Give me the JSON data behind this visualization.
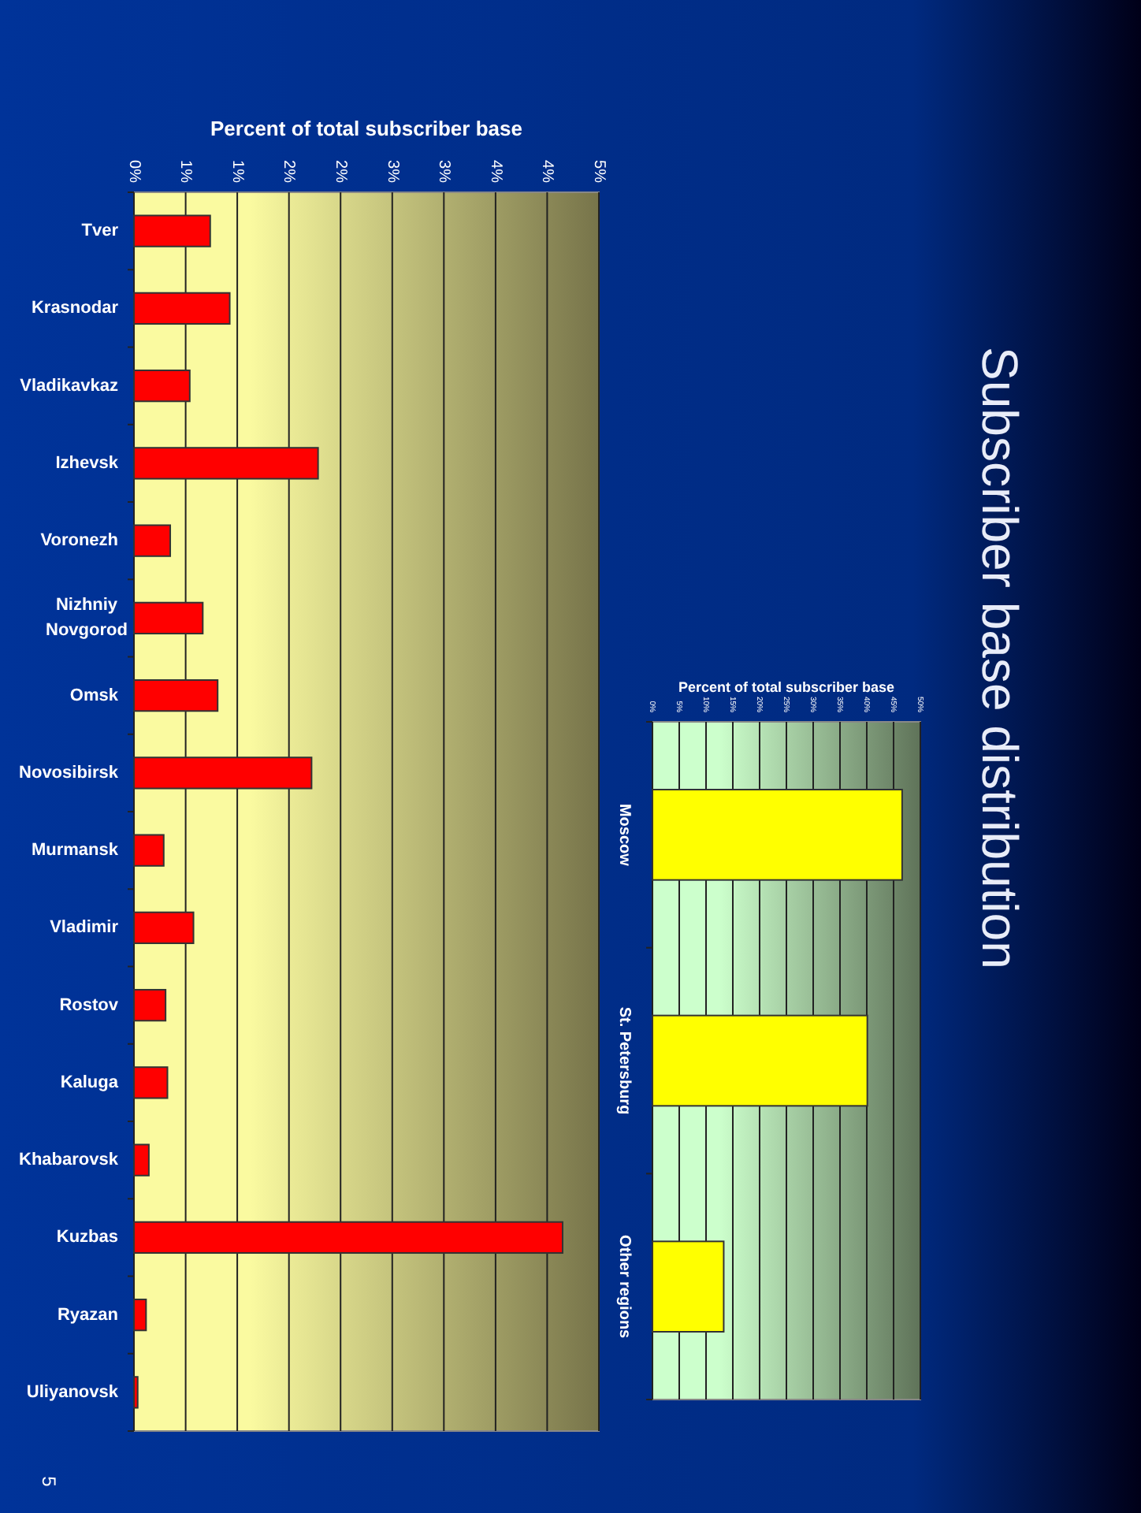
{
  "chart_data": [
    {
      "type": "bar",
      "orientation": "horizontal",
      "title": "Percent of total subscriber base",
      "annotations": [
        "Subscriber base distribution",
        "5"
      ],
      "categories": [
        "Tver",
        "Krasnodar",
        "Vladikavkaz",
        "Izhevsk",
        "Voronezh",
        "Nizhniy Novgorod",
        "Omsk",
        "Novosibirsk",
        "Murmansk",
        "Vladimir",
        "Rostov",
        "Kaluga",
        "Khabarovsk",
        "Kuzbas",
        "Ryazan",
        "Uliyanovsk"
      ],
      "values": [
        0.82,
        1.03,
        0.6,
        1.98,
        0.39,
        0.74,
        0.9,
        1.91,
        0.32,
        0.64,
        0.34,
        0.36,
        0.16,
        4.61,
        0.13,
        0.04
      ],
      "color": "#ff0000",
      "xlim": [
        0,
        5
      ],
      "xticks": [
        {
          "value": 0,
          "label": "0%"
        },
        {
          "value": 0.556,
          "label": "1%"
        },
        {
          "value": 1.111,
          "label": "1%"
        },
        {
          "value": 1.667,
          "label": "2%"
        },
        {
          "value": 2.222,
          "label": "2%"
        },
        {
          "value": 2.778,
          "label": "3%"
        },
        {
          "value": 3.333,
          "label": "3%"
        },
        {
          "value": 3.889,
          "label": "4%"
        },
        {
          "value": 4.444,
          "label": "4%"
        },
        {
          "value": 5,
          "label": "5%"
        }
      ],
      "grid": "x"
    },
    {
      "type": "bar",
      "orientation": "horizontal",
      "title": "Percent of total subscriber base",
      "categories": [
        "Moscow",
        "St. Petersburg",
        "Other regions"
      ],
      "values": [
        46.6,
        40.1,
        13.3
      ],
      "color": "#ffff00",
      "xlim": [
        0,
        50
      ],
      "xticks": [
        {
          "value": 0,
          "label": "0%"
        },
        {
          "value": 5,
          "label": "5%"
        },
        {
          "value": 10,
          "label": "10%"
        },
        {
          "value": 15,
          "label": "15%"
        },
        {
          "value": 20,
          "label": "20%"
        },
        {
          "value": 25,
          "label": "25%"
        },
        {
          "value": 30,
          "label": "30%"
        },
        {
          "value": 35,
          "label": "35%"
        },
        {
          "value": 40,
          "label": "40%"
        },
        {
          "value": 45,
          "label": "45%"
        },
        {
          "value": 50,
          "label": "50%"
        }
      ],
      "grid": "x"
    }
  ]
}
